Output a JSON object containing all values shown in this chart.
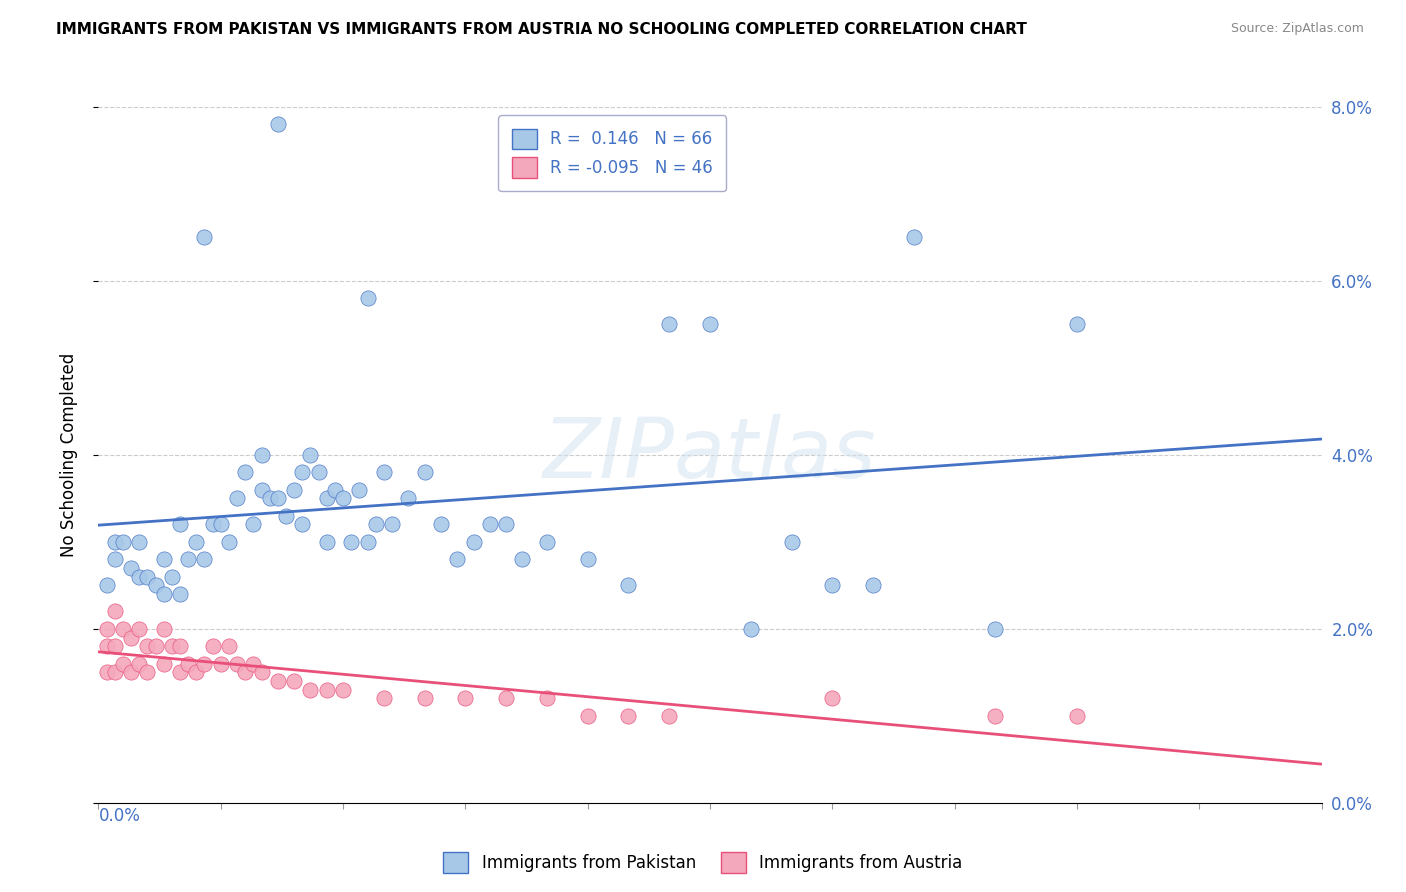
{
  "title": "IMMIGRANTS FROM PAKISTAN VS IMMIGRANTS FROM AUSTRIA NO SCHOOLING COMPLETED CORRELATION CHART",
  "source": "Source: ZipAtlas.com",
  "ylabel": "No Schooling Completed",
  "right_yticks": [
    "0.0%",
    "2.0%",
    "4.0%",
    "6.0%",
    "8.0%"
  ],
  "right_ytick_vals": [
    0.0,
    0.02,
    0.04,
    0.06,
    0.08
  ],
  "series1_label": "Immigrants from Pakistan",
  "series2_label": "Immigrants from Austria",
  "series1_R": "0.146",
  "series1_N": "66",
  "series2_R": "-0.095",
  "series2_N": "46",
  "series1_color": "#a8c8e8",
  "series2_color": "#f4a8bc",
  "series1_line_color": "#4472c4",
  "series2_line_color": "#e8507a",
  "background_color": "#ffffff",
  "xlim": [
    0,
    0.15
  ],
  "ylim": [
    0,
    0.08
  ],
  "pakistan_x": [
    0.001,
    0.002,
    0.002,
    0.003,
    0.004,
    0.005,
    0.005,
    0.006,
    0.007,
    0.008,
    0.008,
    0.009,
    0.01,
    0.01,
    0.011,
    0.012,
    0.013,
    0.014,
    0.015,
    0.016,
    0.017,
    0.018,
    0.019,
    0.02,
    0.02,
    0.021,
    0.022,
    0.023,
    0.024,
    0.025,
    0.025,
    0.026,
    0.027,
    0.028,
    0.028,
    0.029,
    0.03,
    0.031,
    0.032,
    0.033,
    0.034,
    0.035,
    0.036,
    0.038,
    0.04,
    0.042,
    0.044,
    0.046,
    0.048,
    0.05,
    0.052,
    0.055,
    0.06,
    0.065,
    0.07,
    0.075,
    0.08,
    0.085,
    0.09,
    0.095,
    0.1,
    0.11,
    0.12,
    0.013,
    0.022,
    0.033
  ],
  "pakistan_y": [
    0.025,
    0.028,
    0.03,
    0.03,
    0.027,
    0.026,
    0.03,
    0.026,
    0.025,
    0.028,
    0.024,
    0.026,
    0.024,
    0.032,
    0.028,
    0.03,
    0.028,
    0.032,
    0.032,
    0.03,
    0.035,
    0.038,
    0.032,
    0.04,
    0.036,
    0.035,
    0.035,
    0.033,
    0.036,
    0.038,
    0.032,
    0.04,
    0.038,
    0.035,
    0.03,
    0.036,
    0.035,
    0.03,
    0.036,
    0.03,
    0.032,
    0.038,
    0.032,
    0.035,
    0.038,
    0.032,
    0.028,
    0.03,
    0.032,
    0.032,
    0.028,
    0.03,
    0.028,
    0.025,
    0.055,
    0.055,
    0.02,
    0.03,
    0.025,
    0.025,
    0.065,
    0.02,
    0.055,
    0.065,
    0.078,
    0.058
  ],
  "austria_x": [
    0.001,
    0.001,
    0.001,
    0.002,
    0.002,
    0.002,
    0.003,
    0.003,
    0.004,
    0.004,
    0.005,
    0.005,
    0.006,
    0.006,
    0.007,
    0.008,
    0.008,
    0.009,
    0.01,
    0.01,
    0.011,
    0.012,
    0.013,
    0.014,
    0.015,
    0.016,
    0.017,
    0.018,
    0.019,
    0.02,
    0.022,
    0.024,
    0.026,
    0.028,
    0.03,
    0.035,
    0.04,
    0.045,
    0.05,
    0.055,
    0.06,
    0.065,
    0.07,
    0.09,
    0.11,
    0.12
  ],
  "austria_y": [
    0.02,
    0.018,
    0.015,
    0.022,
    0.018,
    0.015,
    0.02,
    0.016,
    0.019,
    0.015,
    0.02,
    0.016,
    0.018,
    0.015,
    0.018,
    0.02,
    0.016,
    0.018,
    0.018,
    0.015,
    0.016,
    0.015,
    0.016,
    0.018,
    0.016,
    0.018,
    0.016,
    0.015,
    0.016,
    0.015,
    0.014,
    0.014,
    0.013,
    0.013,
    0.013,
    0.012,
    0.012,
    0.012,
    0.012,
    0.012,
    0.01,
    0.01,
    0.01,
    0.012,
    0.01,
    0.01
  ]
}
